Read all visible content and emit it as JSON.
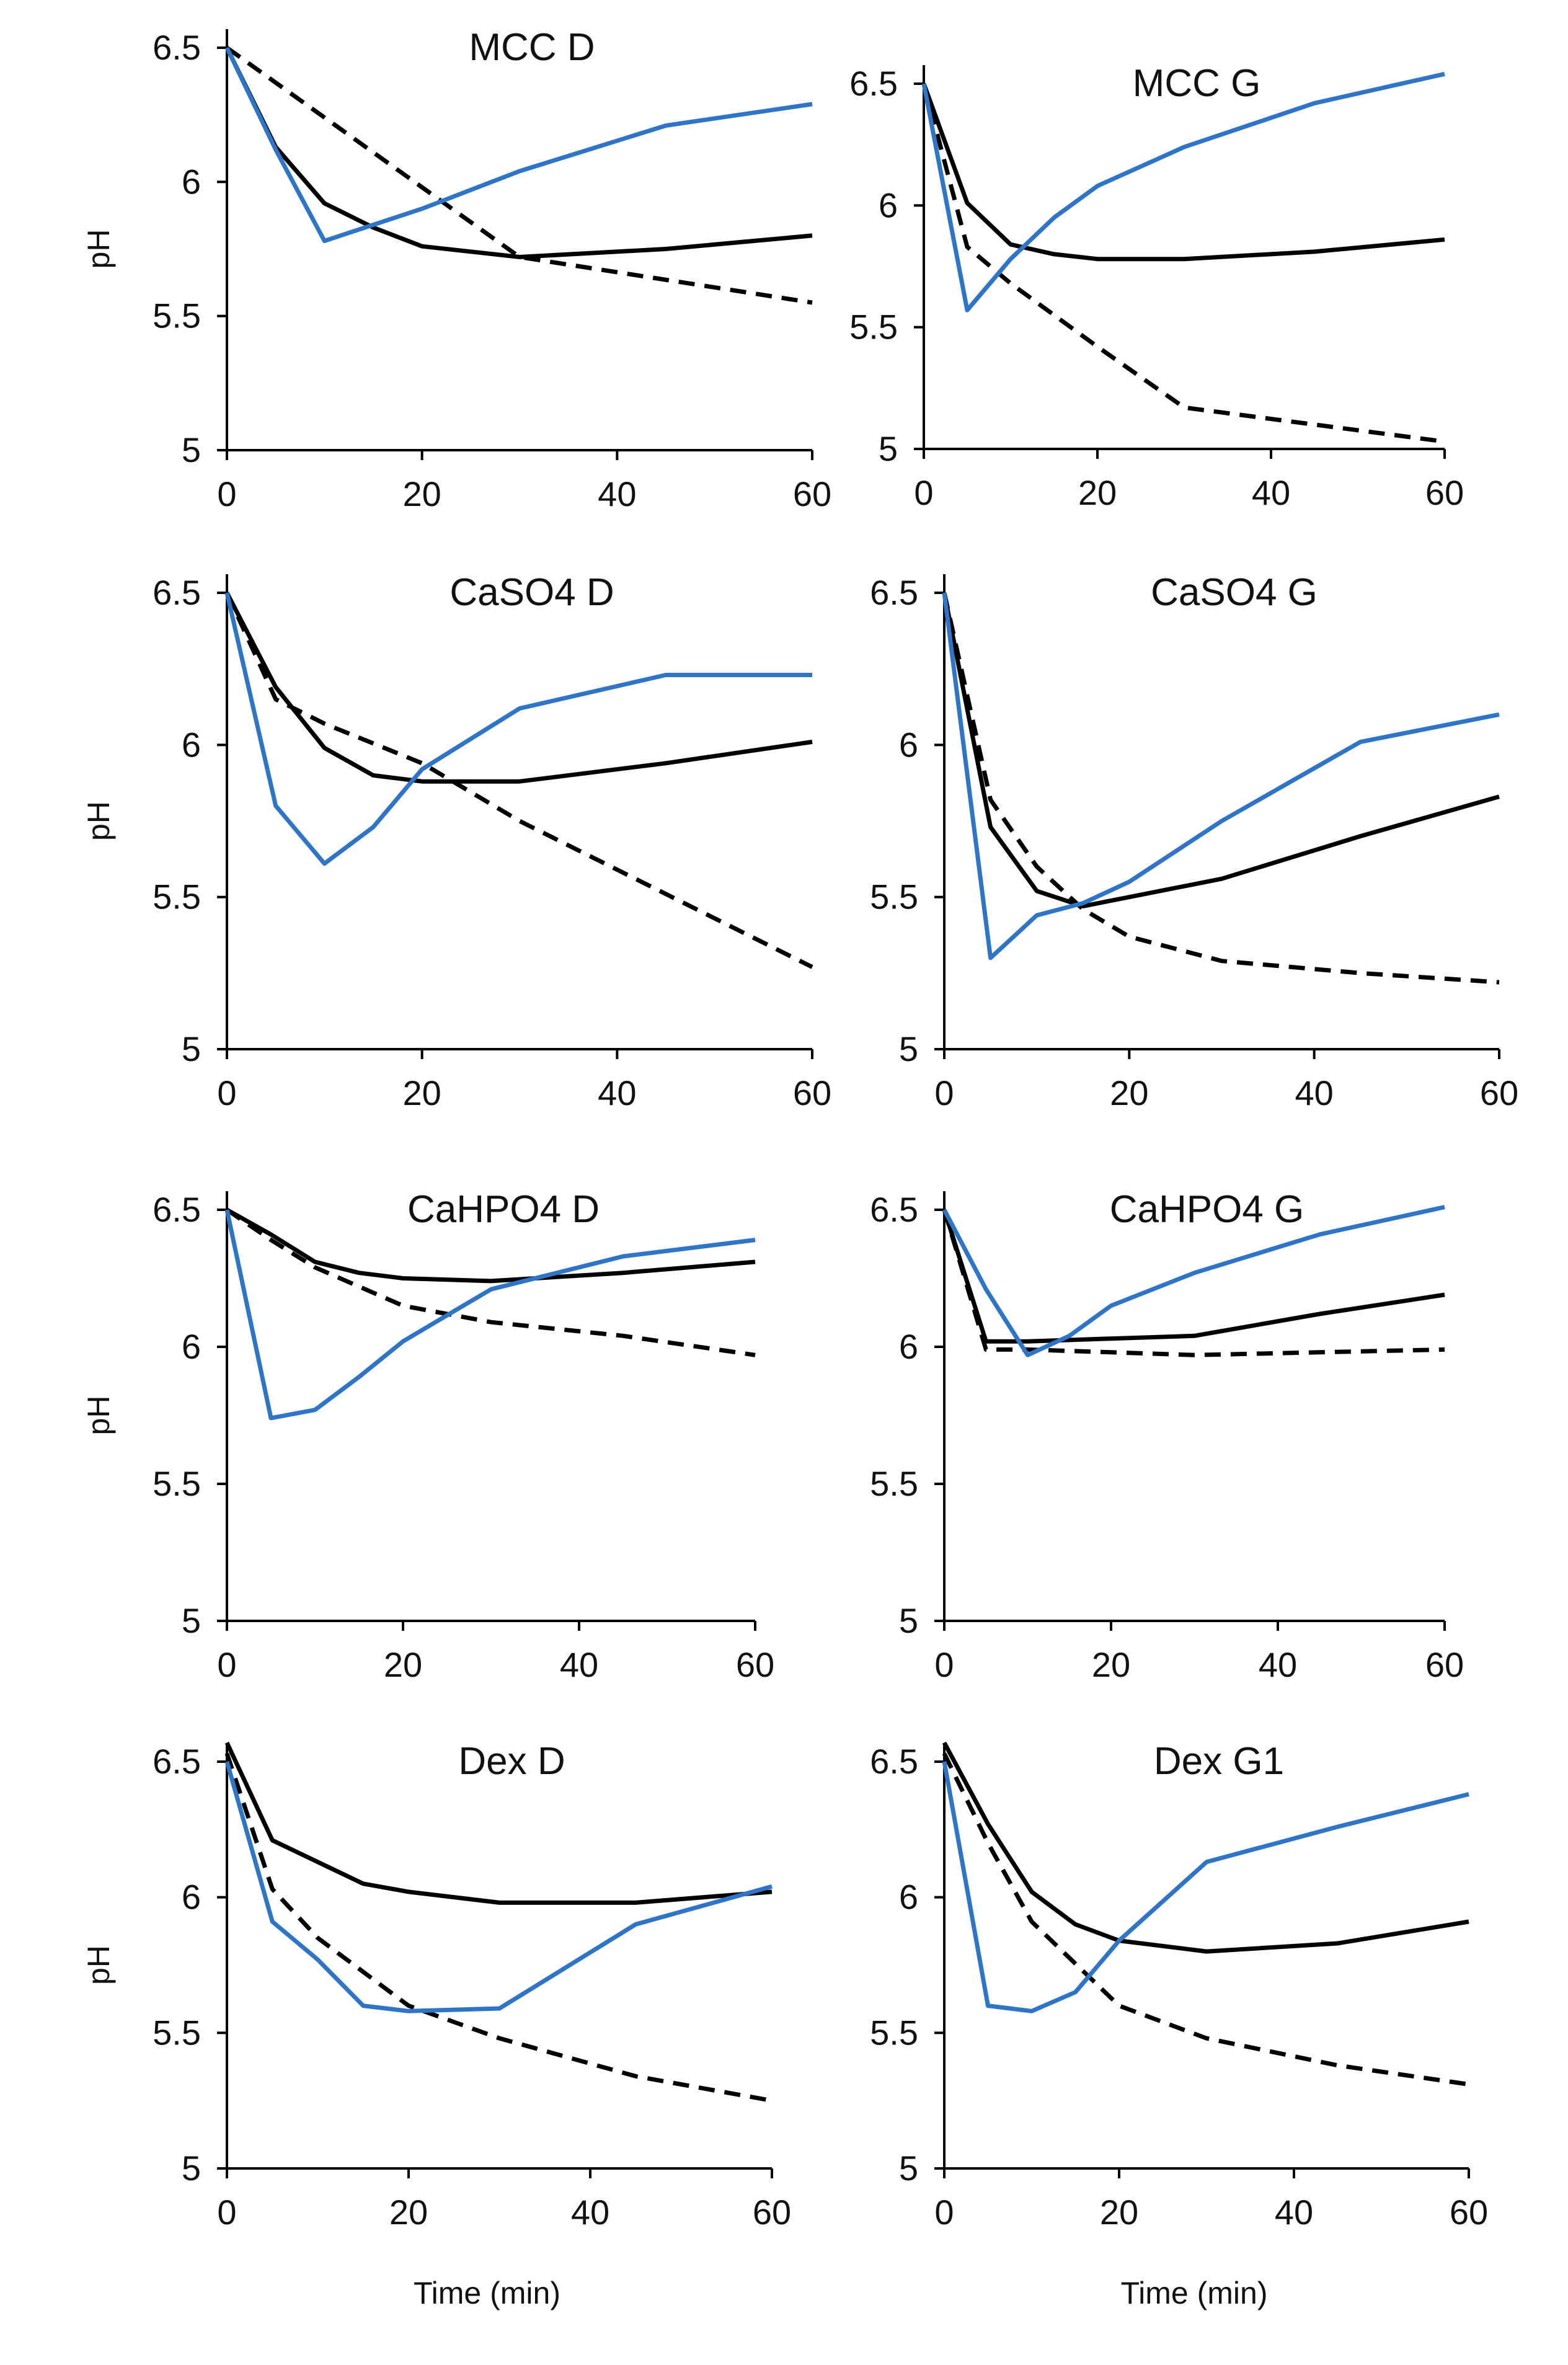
{
  "colors": {
    "a": "#000000",
    "b": "#000000",
    "c": "#2e75c8"
  },
  "figure": {
    "type": "line",
    "xlabel": "Time (min)",
    "ylabel": "pH"
  },
  "chart_data": [
    {
      "type": "line",
      "title": "MCC D",
      "xlabel": "",
      "ylabel": "pH",
      "xlim": [
        0,
        60
      ],
      "ylim": [
        5,
        6.5
      ],
      "xticks": [
        "0",
        "20",
        "40",
        "60"
      ],
      "yticks": [
        "5",
        "5.5",
        "6",
        "6.5"
      ],
      "series": [
        {
          "style": "solid",
          "color": "#000000",
          "x": [
            0,
            5,
            10,
            15,
            20,
            30,
            45,
            60
          ],
          "y": [
            6.5,
            6.13,
            5.92,
            5.83,
            5.76,
            5.72,
            5.75,
            5.8
          ]
        },
        {
          "style": "dashed",
          "color": "#000000",
          "x": [
            0,
            30,
            60
          ],
          "y": [
            6.5,
            5.72,
            5.55
          ]
        },
        {
          "style": "solid",
          "color": "#2e75c8",
          "x": [
            0,
            5,
            10,
            20,
            30,
            45,
            60
          ],
          "y": [
            6.5,
            6.12,
            5.78,
            5.9,
            6.04,
            6.21,
            6.29
          ]
        }
      ]
    },
    {
      "type": "line",
      "title": "MCC G",
      "xlabel": "",
      "ylabel": "",
      "xlim": [
        0,
        60
      ],
      "ylim": [
        5,
        6.5
      ],
      "xticks": [
        "0",
        "20",
        "40",
        "60"
      ],
      "yticks": [
        "5",
        "5.5",
        "6",
        "6.5"
      ],
      "series": [
        {
          "style": "solid",
          "color": "#000000",
          "x": [
            0,
            5,
            10,
            15,
            20,
            30,
            45,
            60
          ],
          "y": [
            6.5,
            6.01,
            5.84,
            5.8,
            5.78,
            5.78,
            5.81,
            5.86
          ]
        },
        {
          "style": "dashed",
          "color": "#000000",
          "x": [
            0,
            5,
            10,
            20,
            30,
            45,
            60
          ],
          "y": [
            6.5,
            5.83,
            5.68,
            5.42,
            5.17,
            5.1,
            5.03
          ]
        },
        {
          "style": "solid",
          "color": "#2e75c8",
          "x": [
            0,
            5,
            10,
            15,
            20,
            30,
            45,
            60
          ],
          "y": [
            6.5,
            5.57,
            5.78,
            5.95,
            6.08,
            6.24,
            6.42,
            6.54
          ]
        }
      ]
    },
    {
      "type": "line",
      "title": "CaSO4 D",
      "xlabel": "",
      "ylabel": "pH",
      "xlim": [
        0,
        60
      ],
      "ylim": [
        5,
        6.5
      ],
      "xticks": [
        "0",
        "20",
        "40",
        "60"
      ],
      "yticks": [
        "5",
        "5.5",
        "6",
        "6.5"
      ],
      "series": [
        {
          "style": "solid",
          "color": "#000000",
          "x": [
            0,
            5,
            10,
            15,
            20,
            30,
            45,
            60
          ],
          "y": [
            6.5,
            6.19,
            5.99,
            5.9,
            5.88,
            5.88,
            5.94,
            6.01
          ]
        },
        {
          "style": "dashed",
          "color": "#000000",
          "x": [
            0,
            5,
            10,
            20,
            30,
            45,
            60
          ],
          "y": [
            6.5,
            6.15,
            6.07,
            5.94,
            5.75,
            5.51,
            5.27
          ]
        },
        {
          "style": "solid",
          "color": "#2e75c8",
          "x": [
            0,
            5,
            10,
            15,
            20,
            30,
            45,
            60
          ],
          "y": [
            6.5,
            5.8,
            5.61,
            5.73,
            5.92,
            6.12,
            6.23,
            6.23
          ]
        }
      ]
    },
    {
      "type": "line",
      "title": "CaSO4 G",
      "xlabel": "",
      "ylabel": "",
      "xlim": [
        0,
        60
      ],
      "ylim": [
        5,
        6.5
      ],
      "xticks": [
        "0",
        "20",
        "40",
        "60"
      ],
      "yticks": [
        "5",
        "5.5",
        "6",
        "6.5"
      ],
      "series": [
        {
          "style": "solid",
          "color": "#000000",
          "x": [
            0,
            5,
            10,
            15,
            20,
            30,
            45,
            60
          ],
          "y": [
            6.5,
            5.73,
            5.52,
            5.47,
            5.5,
            5.56,
            5.7,
            5.83
          ]
        },
        {
          "style": "dashed",
          "color": "#000000",
          "x": [
            0,
            5,
            10,
            15,
            20,
            30,
            45,
            60
          ],
          "y": [
            6.5,
            5.82,
            5.6,
            5.46,
            5.37,
            5.29,
            5.25,
            5.22
          ]
        },
        {
          "style": "solid",
          "color": "#2e75c8",
          "x": [
            0,
            5,
            10,
            15,
            20,
            30,
            45,
            60
          ],
          "y": [
            6.5,
            5.3,
            5.44,
            5.48,
            5.55,
            5.75,
            6.01,
            6.1
          ]
        }
      ]
    },
    {
      "type": "line",
      "title": "CaHPO4 D",
      "xlabel": "",
      "ylabel": "pH",
      "xlim": [
        0,
        60
      ],
      "ylim": [
        5,
        6.5
      ],
      "xticks": [
        "0",
        "20",
        "40",
        "60"
      ],
      "yticks": [
        "5",
        "5.5",
        "6",
        "6.5"
      ],
      "series": [
        {
          "style": "solid",
          "color": "#000000",
          "x": [
            0,
            5,
            10,
            15,
            20,
            30,
            45,
            60
          ],
          "y": [
            6.5,
            6.41,
            6.31,
            6.27,
            6.25,
            6.24,
            6.27,
            6.31
          ]
        },
        {
          "style": "dashed",
          "color": "#000000",
          "x": [
            0,
            5,
            10,
            20,
            30,
            45,
            60
          ],
          "y": [
            6.5,
            6.39,
            6.29,
            6.15,
            6.09,
            6.04,
            5.97
          ]
        },
        {
          "style": "solid",
          "color": "#2e75c8",
          "x": [
            0,
            5,
            10,
            15,
            20,
            30,
            45,
            60
          ],
          "y": [
            6.5,
            5.74,
            5.77,
            5.89,
            6.02,
            6.21,
            6.33,
            6.39
          ]
        }
      ]
    },
    {
      "type": "line",
      "title": "CaHPO4 G",
      "xlabel": "",
      "ylabel": "",
      "xlim": [
        0,
        60
      ],
      "ylim": [
        5,
        6.5
      ],
      "xticks": [
        "0",
        "20",
        "40",
        "60"
      ],
      "yticks": [
        "5",
        "5.5",
        "6",
        "6.5"
      ],
      "series": [
        {
          "style": "solid",
          "color": "#000000",
          "x": [
            0,
            5,
            10,
            20,
            30,
            45,
            60
          ],
          "y": [
            6.5,
            6.02,
            6.02,
            6.03,
            6.04,
            6.12,
            6.19
          ]
        },
        {
          "style": "dashed",
          "color": "#000000",
          "x": [
            0,
            5,
            10,
            20,
            30,
            45,
            60
          ],
          "y": [
            6.5,
            5.99,
            5.99,
            5.98,
            5.97,
            5.98,
            5.99
          ]
        },
        {
          "style": "solid",
          "color": "#2e75c8",
          "x": [
            0,
            5,
            10,
            15,
            20,
            30,
            45,
            60
          ],
          "y": [
            6.5,
            6.21,
            5.97,
            6.04,
            6.15,
            6.27,
            6.41,
            6.51
          ]
        }
      ]
    },
    {
      "type": "line",
      "title": "Dex D",
      "xlabel": "Time (min)",
      "ylabel": "pH",
      "xlim": [
        0,
        60
      ],
      "ylim": [
        5,
        6.5
      ],
      "xticks": [
        "0",
        "20",
        "40",
        "60"
      ],
      "yticks": [
        "5",
        "5.5",
        "6",
        "6.5"
      ],
      "series": [
        {
          "style": "solid",
          "color": "#000000",
          "x": [
            0,
            5,
            10,
            15,
            20,
            30,
            45,
            60
          ],
          "y": [
            6.57,
            6.21,
            6.13,
            6.05,
            6.02,
            5.98,
            5.98,
            6.02
          ]
        },
        {
          "style": "dashed",
          "color": "#000000",
          "x": [
            0,
            5,
            10,
            20,
            30,
            45,
            60
          ],
          "y": [
            6.53,
            6.03,
            5.85,
            5.6,
            5.48,
            5.34,
            5.25
          ]
        },
        {
          "style": "solid",
          "color": "#2e75c8",
          "x": [
            0,
            5,
            10,
            15,
            20,
            30,
            45,
            60
          ],
          "y": [
            6.5,
            5.91,
            5.77,
            5.6,
            5.58,
            5.59,
            5.9,
            6.04
          ]
        }
      ]
    },
    {
      "type": "line",
      "title": "Dex G1",
      "xlabel": "Time (min)",
      "ylabel": "",
      "xlim": [
        0,
        60
      ],
      "ylim": [
        5,
        6.5
      ],
      "xticks": [
        "0",
        "20",
        "40",
        "60"
      ],
      "yticks": [
        "5",
        "5.5",
        "6",
        "6.5"
      ],
      "series": [
        {
          "style": "solid",
          "color": "#000000",
          "x": [
            0,
            5,
            10,
            15,
            20,
            30,
            45,
            60
          ],
          "y": [
            6.57,
            6.27,
            6.02,
            5.9,
            5.84,
            5.8,
            5.83,
            5.91
          ]
        },
        {
          "style": "dashed",
          "color": "#000000",
          "x": [
            0,
            5,
            10,
            20,
            30,
            45,
            60
          ],
          "y": [
            6.53,
            6.2,
            5.91,
            5.6,
            5.48,
            5.38,
            5.31
          ]
        },
        {
          "style": "solid",
          "color": "#2e75c8",
          "x": [
            0,
            5,
            10,
            15,
            20,
            30,
            45,
            60
          ],
          "y": [
            6.5,
            5.6,
            5.58,
            5.65,
            5.84,
            6.13,
            6.26,
            6.38
          ]
        }
      ]
    }
  ]
}
